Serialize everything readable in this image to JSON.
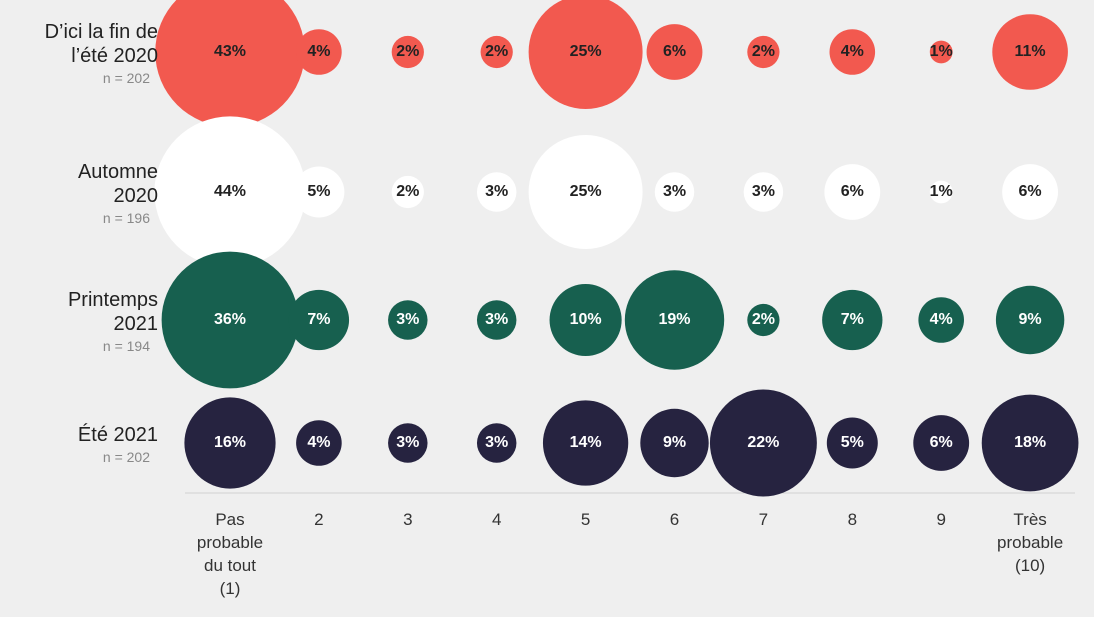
{
  "chart_data": {
    "type": "bubble",
    "categories": [
      "Pas probable du tout (1)",
      "2",
      "3",
      "4",
      "5",
      "6",
      "7",
      "8",
      "9",
      "Très probable (10)"
    ],
    "series": [
      {
        "name": "D’ici la fin de\nl’été 2020",
        "sample": "n = 202",
        "color": "#f2594f",
        "label_color": "#222222",
        "values": [
          43,
          4,
          2,
          2,
          25,
          6,
          2,
          4,
          1,
          11
        ],
        "value_labels": [
          "43%",
          "4%",
          "2%",
          "2%",
          "25%",
          "6%",
          "2%",
          "4%",
          "1%",
          "11%"
        ]
      },
      {
        "name": "Automne\n2020",
        "sample": "n = 196",
        "color": "#ffffff",
        "label_color": "#222222",
        "values": [
          44,
          5,
          2,
          3,
          25,
          3,
          3,
          6,
          1,
          6
        ],
        "value_labels": [
          "44%",
          "5%",
          "2%",
          "3%",
          "25%",
          "3%",
          "3%",
          "6%",
          "1%",
          "6%"
        ]
      },
      {
        "name": "Printemps\n2021",
        "sample": "n = 194",
        "color": "#17604f",
        "label_color": "#ffffff",
        "values": [
          36,
          7,
          3,
          3,
          10,
          19,
          2,
          7,
          4,
          9
        ],
        "value_labels": [
          "36%",
          "7%",
          "3%",
          "3%",
          "10%",
          "19%",
          "2%",
          "7%",
          "4%",
          "9%"
        ]
      },
      {
        "name": "Été 2021",
        "sample": "n = 202",
        "color": "#262340",
        "label_color": "#ffffff",
        "values": [
          16,
          4,
          3,
          3,
          14,
          9,
          22,
          5,
          6,
          18
        ],
        "value_labels": [
          "16%",
          "4%",
          "3%",
          "3%",
          "14%",
          "9%",
          "22%",
          "5%",
          "6%",
          "18%"
        ]
      }
    ]
  }
}
